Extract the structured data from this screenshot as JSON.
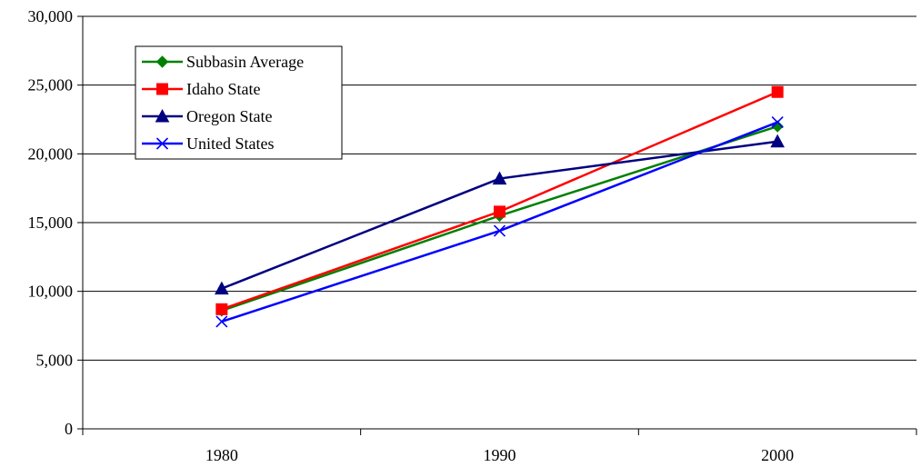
{
  "chart_data": {
    "type": "line",
    "categories": [
      "1980",
      "1990",
      "2000"
    ],
    "ylim": [
      0,
      30000
    ],
    "yticks": [
      0,
      5000,
      10000,
      15000,
      20000,
      25000,
      30000
    ],
    "ytick_labels": [
      "0",
      "5,000",
      "10,000",
      "15,000",
      "20,000",
      "25,000",
      "30,000"
    ],
    "grid": true,
    "legend_position": "top-left",
    "title": "",
    "xlabel": "",
    "ylabel": "",
    "series": [
      {
        "name": "Subbasin Average",
        "values": [
          8600,
          15500,
          22000
        ],
        "color": "#008000",
        "marker": "diamond"
      },
      {
        "name": "Idaho State",
        "values": [
          8700,
          15800,
          24500
        ],
        "color": "#ff0000",
        "marker": "square"
      },
      {
        "name": "Oregon State",
        "values": [
          10200,
          18200,
          20900
        ],
        "color": "#000080",
        "marker": "triangle"
      },
      {
        "name": "United States",
        "values": [
          7800,
          14400,
          22300
        ],
        "color": "#0000ff",
        "marker": "x"
      }
    ]
  }
}
